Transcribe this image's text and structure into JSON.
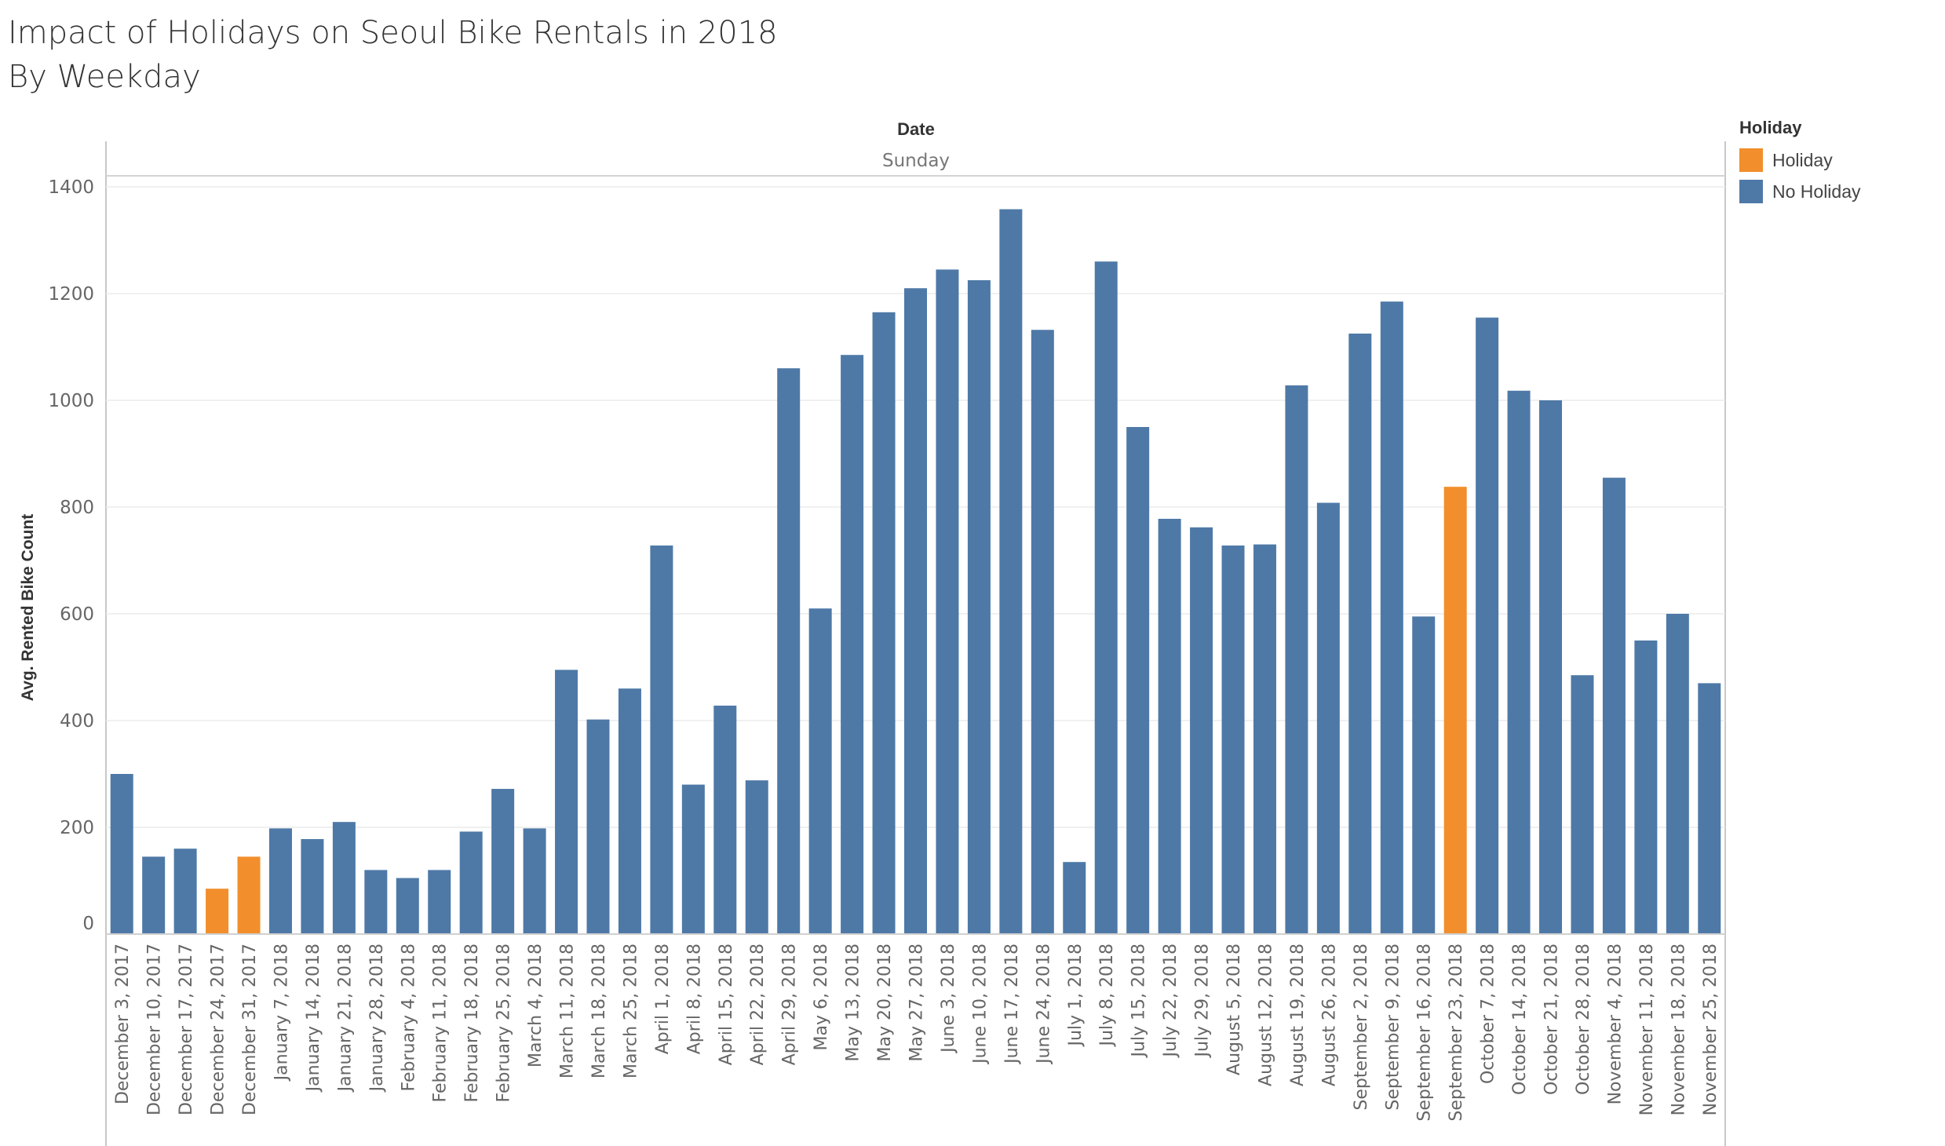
{
  "chart_data": {
    "type": "bar",
    "title": "Impact of Holidays on Seoul Bike Rentals in 2018",
    "subtitle": "By Weekday",
    "column_header": "Date",
    "panel_label": "Sunday",
    "ylabel": "Avg. Rented Bike Count",
    "ylim": [
      0,
      1400
    ],
    "yticks": [
      0,
      200,
      400,
      600,
      800,
      1000,
      1200,
      1400
    ],
    "grid": true,
    "legend": {
      "title": "Holiday",
      "position": "right",
      "entries": [
        {
          "label": "Holiday",
          "color": "#f28e2b"
        },
        {
          "label": "No Holiday",
          "color": "#4e79a7"
        }
      ]
    },
    "colors": {
      "Holiday": "#f28e2b",
      "No Holiday": "#4e79a7"
    },
    "categories": [
      "December 3, 2017",
      "December 10, 2017",
      "December 17, 2017",
      "December 24, 2017",
      "December 31, 2017",
      "January 7, 2018",
      "January 14, 2018",
      "January 21, 2018",
      "January 28, 2018",
      "February 4, 2018",
      "February 11, 2018",
      "February 18, 2018",
      "February 25, 2018",
      "March 4, 2018",
      "March 11, 2018",
      "March 18, 2018",
      "March 25, 2018",
      "April 1, 2018",
      "April 8, 2018",
      "April 15, 2018",
      "April 22, 2018",
      "April 29, 2018",
      "May 6, 2018",
      "May 13, 2018",
      "May 20, 2018",
      "May 27, 2018",
      "June 3, 2018",
      "June 10, 2018",
      "June 17, 2018",
      "June 24, 2018",
      "July 1, 2018",
      "July 8, 2018",
      "July 15, 2018",
      "July 22, 2018",
      "July 29, 2018",
      "August 5, 2018",
      "August 12, 2018",
      "August 19, 2018",
      "August 26, 2018",
      "September 2, 2018",
      "September 9, 2018",
      "September 16, 2018",
      "September 23, 2018",
      "October 7, 2018",
      "October 14, 2018",
      "October 21, 2018",
      "October 28, 2018",
      "November 4, 2018",
      "November 11, 2018",
      "November 18, 2018",
      "November 25, 2018"
    ],
    "values": [
      300,
      145,
      160,
      85,
      145,
      198,
      178,
      210,
      120,
      105,
      120,
      192,
      272,
      198,
      495,
      402,
      460,
      728,
      280,
      428,
      288,
      1060,
      610,
      1085,
      1165,
      1210,
      1245,
      1225,
      1358,
      1132,
      135,
      1260,
      950,
      778,
      762,
      728,
      730,
      1028,
      808,
      1125,
      1185,
      595,
      838,
      1155,
      1018,
      1000,
      485,
      855,
      550,
      600,
      470
    ],
    "holiday": [
      "No Holiday",
      "No Holiday",
      "No Holiday",
      "Holiday",
      "Holiday",
      "No Holiday",
      "No Holiday",
      "No Holiday",
      "No Holiday",
      "No Holiday",
      "No Holiday",
      "No Holiday",
      "No Holiday",
      "No Holiday",
      "No Holiday",
      "No Holiday",
      "No Holiday",
      "No Holiday",
      "No Holiday",
      "No Holiday",
      "No Holiday",
      "No Holiday",
      "No Holiday",
      "No Holiday",
      "No Holiday",
      "No Holiday",
      "No Holiday",
      "No Holiday",
      "No Holiday",
      "No Holiday",
      "No Holiday",
      "No Holiday",
      "No Holiday",
      "No Holiday",
      "No Holiday",
      "No Holiday",
      "No Holiday",
      "No Holiday",
      "No Holiday",
      "No Holiday",
      "No Holiday",
      "No Holiday",
      "Holiday",
      "No Holiday",
      "No Holiday",
      "No Holiday",
      "No Holiday",
      "No Holiday",
      "No Holiday",
      "No Holiday",
      "No Holiday"
    ]
  }
}
